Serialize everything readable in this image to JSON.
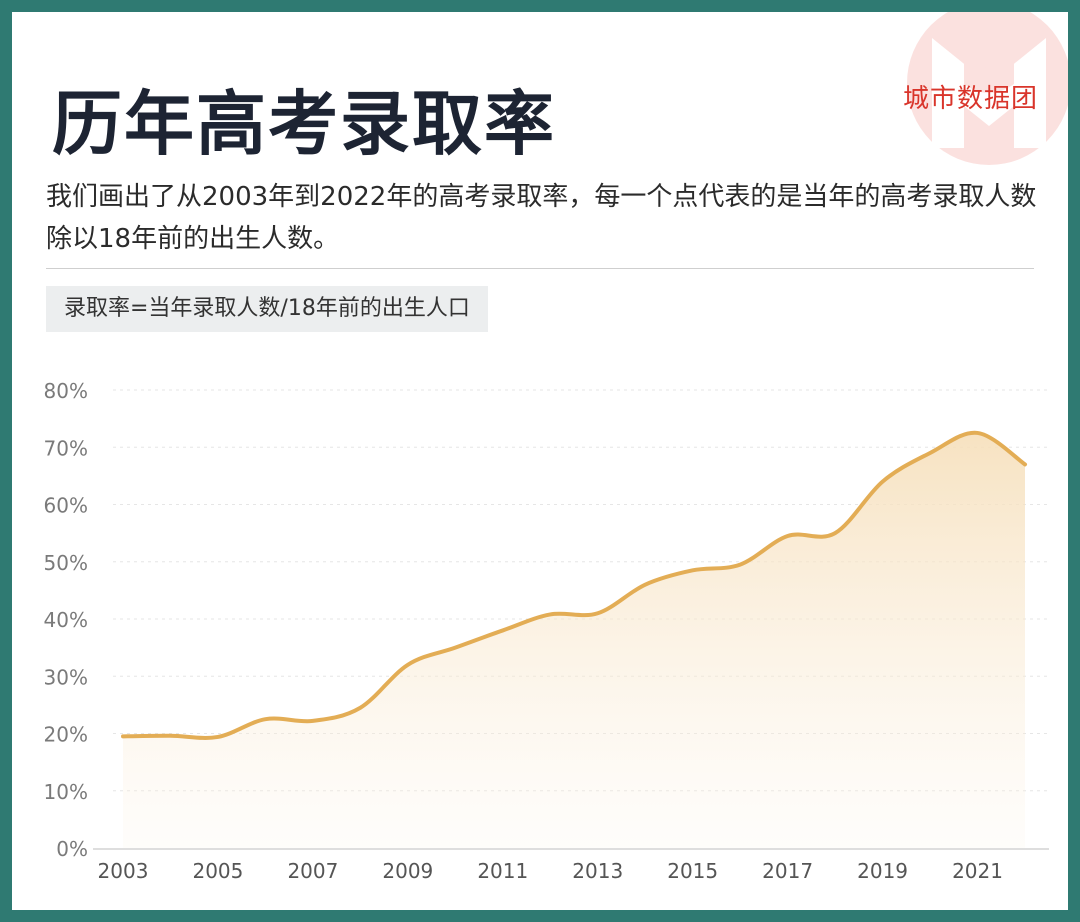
{
  "header": {
    "title": "历年高考录取率",
    "description": "我们画出了从2003年到2022年的高考录取率，每一个点代表的是当年的高考录取人数除以18年前的出生人数。",
    "formula": "录取率=当年录取人数/18年前的出生人口",
    "brand": "城市数据团"
  },
  "colors": {
    "frame": "#2f7a72",
    "line": "#e3ad55",
    "fill": "#f6dfba",
    "brand": "#d9352b"
  },
  "chart_data": {
    "type": "area",
    "x": [
      2003,
      2004,
      2005,
      2006,
      2007,
      2008,
      2009,
      2010,
      2011,
      2012,
      2013,
      2014,
      2015,
      2016,
      2017,
      2018,
      2019,
      2020,
      2021,
      2022
    ],
    "values": [
      19.5,
      19.6,
      19.4,
      22.5,
      22.2,
      24.5,
      32.0,
      35.0,
      38.0,
      40.8,
      41.0,
      46.0,
      48.5,
      49.5,
      54.5,
      55.0,
      64.0,
      69.0,
      72.5,
      67.0
    ],
    "xticks": [
      "2003",
      "2005",
      "2007",
      "2009",
      "2011",
      "2013",
      "2015",
      "2017",
      "2019",
      "2021"
    ],
    "yticks": [
      "0%",
      "10%",
      "20%",
      "30%",
      "40%",
      "50%",
      "60%",
      "70%",
      "80%"
    ],
    "ylim": [
      0,
      80
    ],
    "xlim": [
      2003,
      2022
    ],
    "grid": true
  }
}
